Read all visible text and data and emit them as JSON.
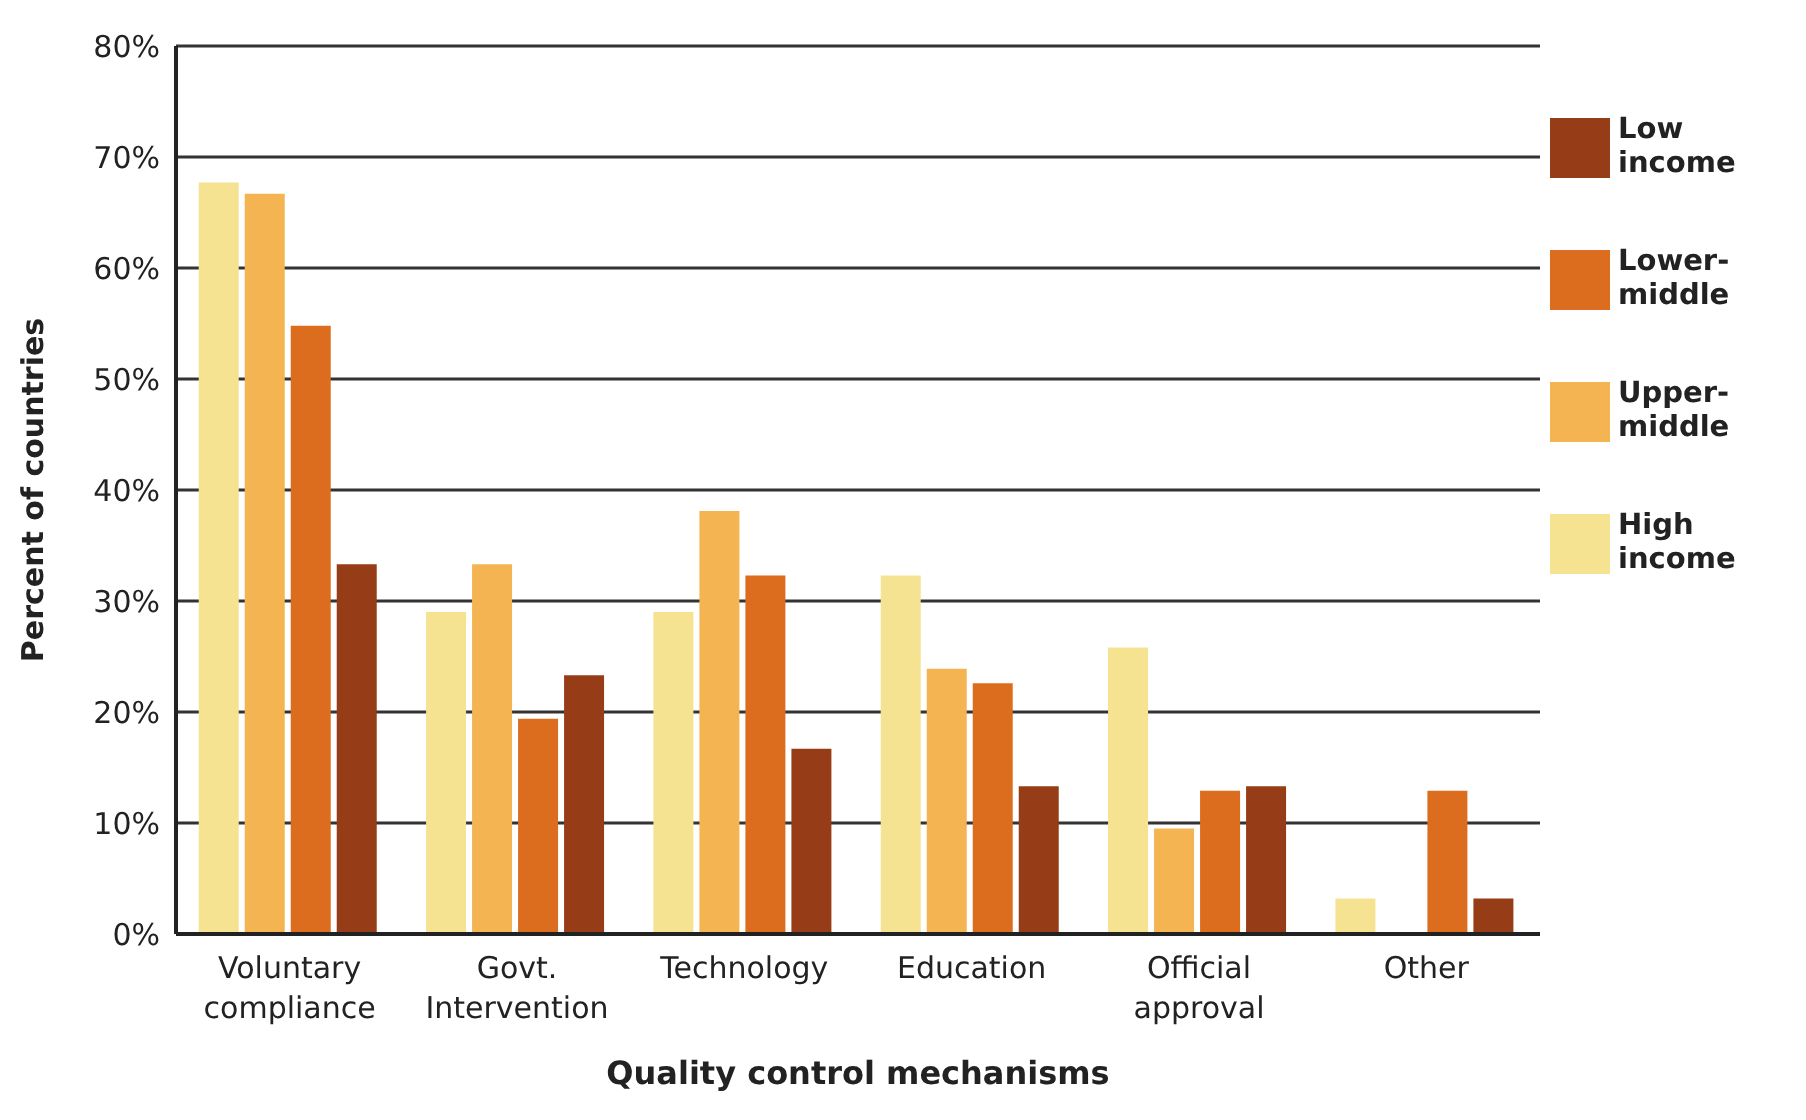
{
  "chart_data": {
    "type": "bar",
    "xlabel": "Quality control mechanisms",
    "ylabel": "Percent of countries",
    "categories": [
      "Voluntary compliance",
      "Govt. Intervention",
      "Technology",
      "Education",
      "Official approval",
      "Other"
    ],
    "series": [
      {
        "name": "High income",
        "color": "#f5e391",
        "values": [
          67.7,
          29,
          29,
          32.3,
          25.8,
          3.2
        ]
      },
      {
        "name": "Upper-middle",
        "color": "#f5b452",
        "values": [
          66.7,
          33.3,
          38.1,
          23.9,
          9.5,
          0
        ]
      },
      {
        "name": "Lower-middle",
        "color": "#dc6d1f",
        "values": [
          54.8,
          19.4,
          32.3,
          22.6,
          12.9,
          12.9
        ]
      },
      {
        "name": "Low income",
        "color": "#963c16",
        "values": [
          33.3,
          23.3,
          16.7,
          13.3,
          13.3,
          3.2
        ]
      }
    ],
    "ylim": [
      0,
      80
    ],
    "yticks": [
      {
        "value": 0,
        "label": "0%"
      },
      {
        "value": 10,
        "label": "10%"
      },
      {
        "value": 20,
        "label": "20%"
      },
      {
        "value": 30,
        "label": "30%"
      },
      {
        "value": 40,
        "label": "40%"
      },
      {
        "value": 50,
        "label": "50%"
      },
      {
        "value": 60,
        "label": "60%"
      },
      {
        "value": 70,
        "label": "70%"
      },
      {
        "value": 80,
        "label": "80%"
      }
    ],
    "grid": "y",
    "legend": "right"
  }
}
